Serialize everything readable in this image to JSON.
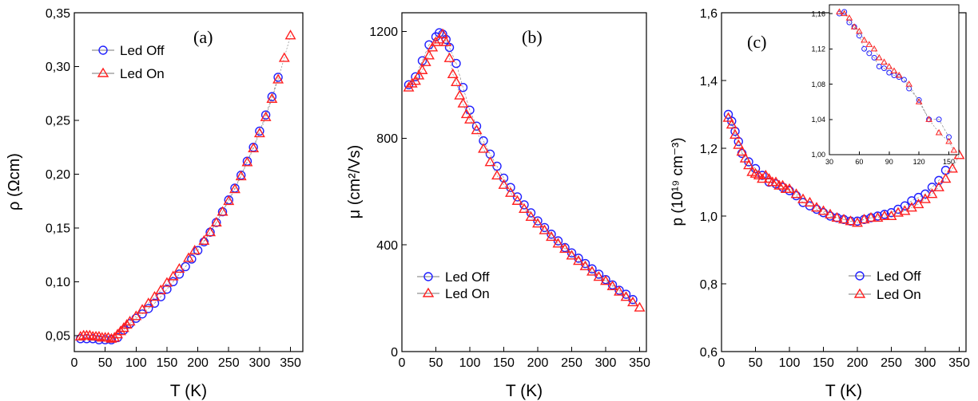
{
  "colors": {
    "off": "#1f1fff",
    "on": "#ff2020",
    "axis": "#000000",
    "link": "#777777"
  },
  "chart_data": [
    {
      "type": "scatter",
      "panel_label": "(a)",
      "xlabel": "T (K)",
      "ylabel": "ρ (Ωcm)",
      "xlim": [
        0,
        370
      ],
      "ylim": [
        0.035,
        0.35
      ],
      "xticks": [
        0,
        50,
        100,
        150,
        200,
        250,
        300,
        350
      ],
      "xtick_labels": [
        "0",
        "50",
        "100",
        "150",
        "200",
        "250",
        "300",
        "350"
      ],
      "yticks": [
        0.05,
        0.1,
        0.15,
        0.2,
        0.25,
        0.3,
        0.35
      ],
      "ytick_labels": [
        "0,05",
        "0,10",
        "0,15",
        "0,20",
        "0,25",
        "0,30",
        "0,35"
      ],
      "legend_position": "top-left",
      "series": [
        {
          "name": "Led Off",
          "marker": "circle",
          "x": [
            10,
            20,
            30,
            40,
            50,
            60,
            70,
            80,
            90,
            100,
            110,
            120,
            130,
            140,
            150,
            160,
            170,
            180,
            190,
            200,
            210,
            220,
            230,
            240,
            250,
            260,
            270,
            280,
            290,
            300,
            310,
            320,
            330
          ],
          "y": [
            0.047,
            0.047,
            0.047,
            0.046,
            0.046,
            0.046,
            0.048,
            0.055,
            0.061,
            0.066,
            0.07,
            0.075,
            0.08,
            0.086,
            0.093,
            0.1,
            0.107,
            0.114,
            0.121,
            0.129,
            0.137,
            0.146,
            0.155,
            0.165,
            0.176,
            0.187,
            0.199,
            0.212,
            0.225,
            0.24,
            0.255,
            0.272,
            0.29
          ]
        },
        {
          "name": "Led On",
          "marker": "triangle",
          "x": [
            10,
            15,
            20,
            25,
            30,
            35,
            40,
            45,
            50,
            55,
            60,
            65,
            70,
            75,
            80,
            85,
            90,
            100,
            110,
            120,
            130,
            140,
            150,
            160,
            170,
            185,
            195,
            210,
            220,
            230,
            240,
            250,
            260,
            270,
            280,
            290,
            300,
            310,
            320,
            330,
            340,
            350
          ],
          "y": [
            0.049,
            0.05,
            0.05,
            0.05,
            0.049,
            0.049,
            0.049,
            0.048,
            0.048,
            0.048,
            0.047,
            0.048,
            0.051,
            0.054,
            0.057,
            0.06,
            0.063,
            0.068,
            0.074,
            0.08,
            0.086,
            0.092,
            0.099,
            0.105,
            0.112,
            0.122,
            0.129,
            0.138,
            0.146,
            0.155,
            0.165,
            0.175,
            0.186,
            0.198,
            0.211,
            0.224,
            0.238,
            0.253,
            0.27,
            0.288,
            0.308,
            0.329
          ]
        }
      ]
    },
    {
      "type": "scatter",
      "panel_label": "(b)",
      "xlabel": "T (K)",
      "ylabel": "μ (cm²/Vs)",
      "xlim": [
        0,
        360
      ],
      "ylim": [
        0,
        1270
      ],
      "xticks": [
        0,
        50,
        100,
        150,
        200,
        250,
        300,
        350
      ],
      "xtick_labels": [
        "0",
        "50",
        "100",
        "150",
        "200",
        "250",
        "300",
        "350"
      ],
      "yticks": [
        0,
        400,
        800,
        1200
      ],
      "ytick_labels": [
        "0",
        "400",
        "800",
        "1200"
      ],
      "legend_position": "bottom-left",
      "series": [
        {
          "name": "Led Off",
          "marker": "circle",
          "x": [
            10,
            20,
            30,
            40,
            50,
            55,
            60,
            65,
            70,
            80,
            90,
            100,
            110,
            120,
            130,
            140,
            150,
            160,
            170,
            180,
            190,
            200,
            210,
            220,
            230,
            240,
            250,
            260,
            270,
            280,
            290,
            300,
            310,
            320,
            330,
            340
          ],
          "y": [
            1000,
            1030,
            1090,
            1150,
            1180,
            1195,
            1190,
            1170,
            1140,
            1080,
            990,
            905,
            845,
            790,
            740,
            695,
            650,
            615,
            580,
            550,
            520,
            490,
            465,
            440,
            415,
            390,
            370,
            350,
            330,
            310,
            290,
            270,
            250,
            230,
            215,
            195
          ]
        },
        {
          "name": "Led On",
          "marker": "triangle",
          "x": [
            10,
            15,
            20,
            25,
            30,
            35,
            40,
            45,
            50,
            55,
            60,
            65,
            70,
            75,
            80,
            85,
            90,
            95,
            100,
            110,
            120,
            130,
            140,
            150,
            160,
            170,
            180,
            190,
            200,
            210,
            220,
            230,
            240,
            250,
            260,
            270,
            280,
            290,
            300,
            310,
            320,
            330,
            340,
            350
          ],
          "y": [
            990,
            1005,
            1015,
            1035,
            1055,
            1085,
            1110,
            1140,
            1160,
            1170,
            1190,
            1160,
            1100,
            1040,
            1010,
            960,
            930,
            890,
            870,
            830,
            760,
            710,
            660,
            625,
            595,
            565,
            535,
            505,
            480,
            455,
            430,
            405,
            385,
            360,
            340,
            320,
            300,
            280,
            265,
            245,
            225,
            205,
            185,
            165
          ]
        }
      ]
    },
    {
      "type": "scatter",
      "panel_label": "(c)",
      "xlabel": "T (K)",
      "ylabel": "p (10¹⁹ cm⁻³)",
      "xlim": [
        0,
        360
      ],
      "ylim": [
        0.6,
        1.6
      ],
      "xticks": [
        0,
        50,
        100,
        150,
        200,
        250,
        300,
        350
      ],
      "xtick_labels": [
        "0",
        "50",
        "100",
        "150",
        "200",
        "250",
        "300",
        "350"
      ],
      "yticks": [
        0.6,
        0.8,
        1.0,
        1.2,
        1.4,
        1.6
      ],
      "ytick_labels": [
        "0,6",
        "0,8",
        "1,0",
        "1,2",
        "1,4",
        "1,6"
      ],
      "legend_position": "bottom-right",
      "series": [
        {
          "name": "Led Off",
          "marker": "circle",
          "x": [
            10,
            15,
            20,
            25,
            30,
            40,
            50,
            60,
            70,
            80,
            90,
            100,
            110,
            120,
            130,
            140,
            150,
            160,
            170,
            180,
            190,
            200,
            210,
            220,
            230,
            240,
            250,
            260,
            270,
            280,
            290,
            300,
            310,
            320,
            330
          ],
          "y": [
            1.3,
            1.28,
            1.25,
            1.22,
            1.185,
            1.16,
            1.14,
            1.12,
            1.1,
            1.095,
            1.085,
            1.075,
            1.06,
            1.04,
            1.03,
            1.02,
            1.01,
            1.0,
            0.995,
            0.99,
            0.985,
            0.985,
            0.99,
            0.995,
            1.0,
            1.005,
            1.01,
            1.02,
            1.03,
            1.045,
            1.055,
            1.065,
            1.085,
            1.105,
            1.135
          ]
        },
        {
          "name": "Led On",
          "marker": "triangle",
          "x": [
            10,
            15,
            20,
            25,
            30,
            35,
            40,
            45,
            50,
            55,
            60,
            65,
            70,
            75,
            80,
            85,
            90,
            95,
            100,
            110,
            120,
            130,
            140,
            150,
            160,
            170,
            180,
            190,
            200,
            210,
            220,
            230,
            240,
            250,
            260,
            270,
            280,
            290,
            300,
            310,
            320,
            330,
            340,
            350
          ],
          "y": [
            1.29,
            1.27,
            1.24,
            1.21,
            1.19,
            1.17,
            1.15,
            1.13,
            1.125,
            1.12,
            1.11,
            1.12,
            1.11,
            1.1,
            1.1,
            1.09,
            1.09,
            1.08,
            1.08,
            1.065,
            1.05,
            1.04,
            1.025,
            1.015,
            1.005,
            0.995,
            0.99,
            0.985,
            0.98,
            0.99,
            0.995,
            0.995,
            1.0,
            1.0,
            1.01,
            1.015,
            1.025,
            1.035,
            1.05,
            1.065,
            1.085,
            1.11,
            1.14,
            1.18
          ]
        }
      ],
      "inset": {
        "xlim": [
          30,
          160
        ],
        "ylim": [
          1.0,
          1.17
        ],
        "xticks": [
          30,
          60,
          90,
          120,
          150
        ],
        "xtick_labels": [
          "30",
          "60",
          "90",
          "120",
          "150"
        ],
        "yticks": [
          1.0,
          1.04,
          1.08,
          1.12,
          1.16
        ],
        "ytick_labels": [
          "1,00",
          "1,04",
          "1,08",
          "1,12",
          "1,16"
        ],
        "series": [
          {
            "marker": "circle",
            "x": [
              40,
              45,
              50,
              55,
              60,
              65,
              70,
              75,
              80,
              85,
              90,
              95,
              100,
              105,
              110,
              120,
              130,
              140,
              150
            ],
            "y": [
              1.16,
              1.162,
              1.15,
              1.145,
              1.135,
              1.12,
              1.115,
              1.11,
              1.1,
              1.098,
              1.093,
              1.09,
              1.088,
              1.085,
              1.075,
              1.062,
              1.04,
              1.04,
              1.02
            ]
          },
          {
            "marker": "triangle",
            "x": [
              40,
              45,
              50,
              55,
              60,
              65,
              70,
              75,
              80,
              85,
              90,
              95,
              100,
              110,
              120,
              130,
              140,
              150,
              155
            ],
            "y": [
              1.162,
              1.16,
              1.155,
              1.145,
              1.14,
              1.13,
              1.125,
              1.12,
              1.11,
              1.105,
              1.1,
              1.095,
              1.09,
              1.08,
              1.06,
              1.04,
              1.025,
              1.015,
              1.005
            ]
          }
        ]
      }
    }
  ]
}
